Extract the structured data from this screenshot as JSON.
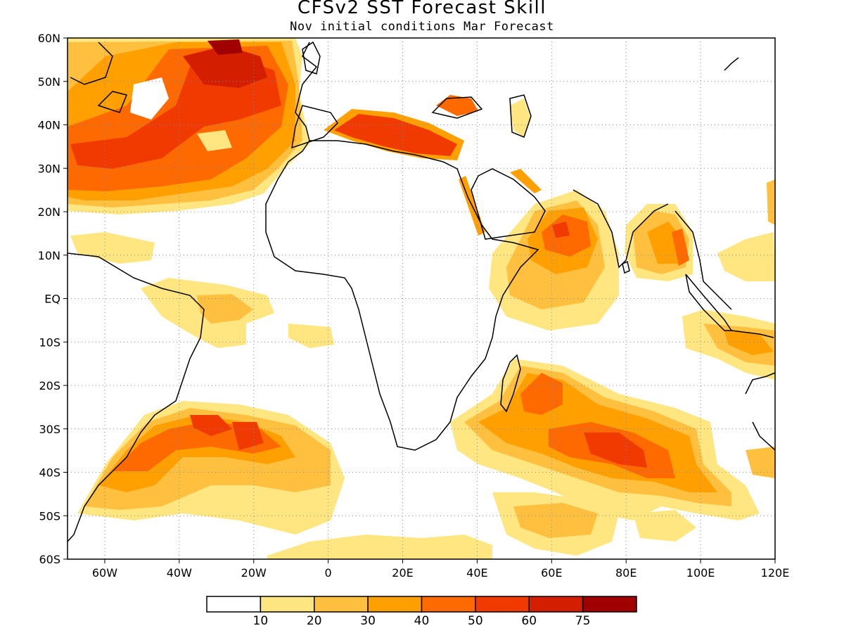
{
  "title": "CFSv2 SST Forecast Skill",
  "subtitle": "Nov initial conditions   Mar Forecast",
  "map": {
    "lon_range": [
      -70,
      120
    ],
    "lat_range": [
      -60,
      60
    ],
    "grid": "dotted",
    "lon_labels": [
      "60W",
      "40W",
      "20W",
      "0",
      "20E",
      "40E",
      "60E",
      "80E",
      "100E",
      "120E"
    ],
    "lat_labels": [
      "60N",
      "50N",
      "40N",
      "30N",
      "20N",
      "10N",
      "EQ",
      "10S",
      "20S",
      "30S",
      "40S",
      "50S",
      "60S"
    ]
  },
  "colorbar": {
    "levels": [
      "10",
      "20",
      "30",
      "40",
      "50",
      "60",
      "75"
    ],
    "colors": [
      "#ffffff",
      "#ffe680",
      "#ffc040",
      "#ffa000",
      "#ff6a00",
      "#f03a00",
      "#d31f00",
      "#a00000"
    ]
  },
  "skill_regions": [
    {
      "name": "North Atlantic",
      "peak": "75+"
    },
    {
      "name": "Mediterranean Sea",
      "peak": "60"
    },
    {
      "name": "Arabian Sea",
      "peak": "60"
    },
    {
      "name": "Bay of Bengal",
      "peak": "50"
    },
    {
      "name": "South Atlantic",
      "peak": "60"
    },
    {
      "name": "South Indian Ocean",
      "peak": "60"
    },
    {
      "name": "Tropical Atlantic",
      "peak": "30"
    }
  ]
}
